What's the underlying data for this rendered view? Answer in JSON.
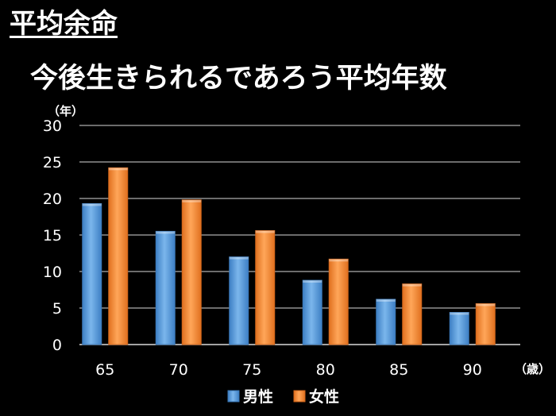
{
  "page": {
    "title": "平均余命",
    "subtitle": "今後生きられるであろう平均年数"
  },
  "colors": {
    "background": "#000000",
    "male": "#5b9bd5",
    "female": "#f0883a",
    "gridline": "#d9d9d9"
  },
  "chart_data": {
    "type": "bar",
    "title": "",
    "xlabel": "",
    "ylabel": "",
    "x_unit": "（歳）",
    "y_unit": "（年）",
    "categories": [
      "65",
      "70",
      "75",
      "80",
      "85",
      "90"
    ],
    "series": [
      {
        "name": "男性",
        "values": [
          19.3,
          15.5,
          12.0,
          8.8,
          6.2,
          4.4
        ]
      },
      {
        "name": "女性",
        "values": [
          24.2,
          19.8,
          15.6,
          11.7,
          8.3,
          5.6
        ]
      }
    ],
    "ylim": [
      0,
      30
    ],
    "yticks": [
      0,
      5,
      10,
      15,
      20,
      25,
      30
    ],
    "grid": true,
    "legend_position": "bottom"
  }
}
